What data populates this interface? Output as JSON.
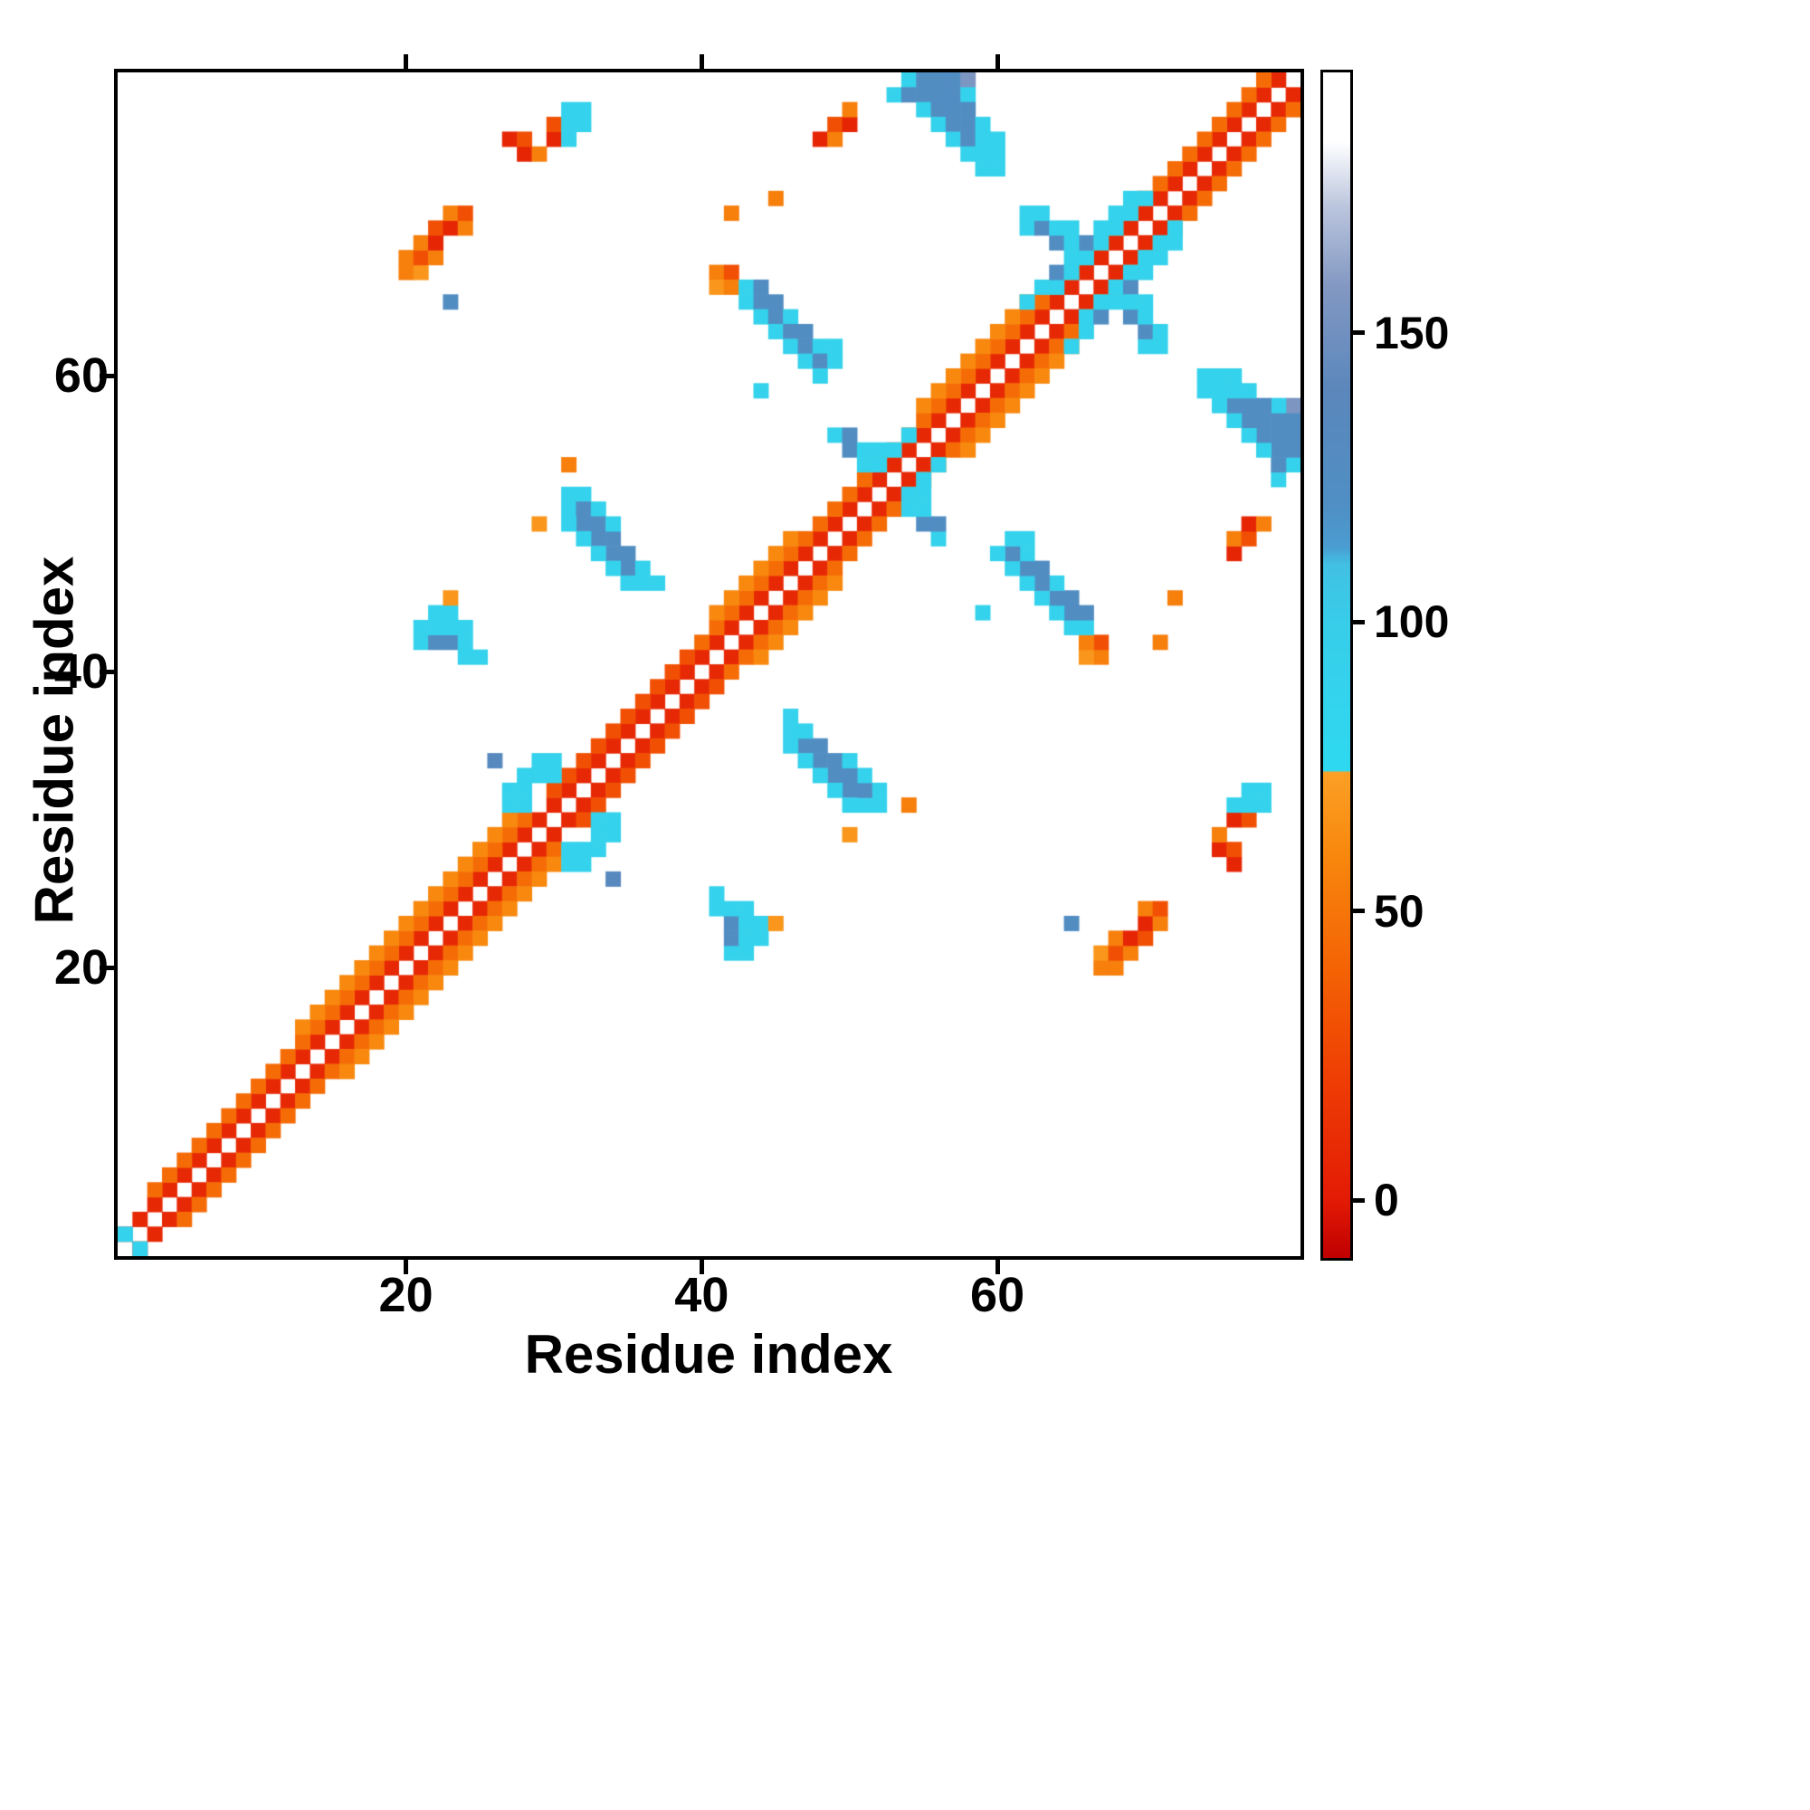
{
  "figure": {
    "background": "#ffffff"
  },
  "chart_data": {
    "type": "heatmap",
    "xlabel": "Residue index",
    "ylabel": "Residue index",
    "n_residues": 80,
    "x_ticks": [
      20,
      40,
      60
    ],
    "y_ticks": [
      20,
      40,
      60
    ],
    "symmetric": true,
    "grid": false,
    "colorbar": {
      "position": "right",
      "ticks": [
        0,
        50,
        100,
        150
      ],
      "vmin": -10,
      "vmax": 195,
      "stops": [
        [
          -10,
          "#c00000"
        ],
        [
          0,
          "#e31b05"
        ],
        [
          20,
          "#ee3c04"
        ],
        [
          40,
          "#f46304"
        ],
        [
          60,
          "#f8880e"
        ],
        [
          74,
          "#fba025"
        ],
        [
          74.2,
          "#2ed9f0"
        ],
        [
          100,
          "#38cdea"
        ],
        [
          110,
          "#41c0e4"
        ],
        [
          113,
          "#4a9dd2"
        ],
        [
          120,
          "#4f8fc4"
        ],
        [
          140,
          "#5b87bc"
        ],
        [
          158,
          "#8298c2"
        ],
        [
          172,
          "#bcc6de"
        ],
        [
          183,
          "#ffffff"
        ],
        [
          195,
          "#ffffff"
        ]
      ]
    },
    "diagonal_band": [
      {
        "from": 1,
        "to": 79,
        "offset": 1,
        "value": 8
      },
      {
        "from": 3,
        "to": 28,
        "offset": 2,
        "value": 45
      },
      {
        "from": 30,
        "to": 39,
        "offset": 2,
        "value": 30
      },
      {
        "from": 40,
        "to": 78,
        "offset": 2,
        "value": 45
      },
      {
        "from": 13,
        "to": 27,
        "offset": 3,
        "value": 60
      },
      {
        "from": 41,
        "to": 46,
        "offset": 3,
        "value": 60
      },
      {
        "from": 55,
        "to": 62,
        "offset": 3,
        "value": 60
      }
    ],
    "cells": [
      [
        1,
        2,
        90
      ],
      [
        20,
        67,
        55
      ],
      [
        21,
        67,
        68
      ],
      [
        20,
        68,
        55
      ],
      [
        21,
        68,
        30
      ],
      [
        22,
        68,
        55
      ],
      [
        21,
        69,
        55
      ],
      [
        22,
        69,
        6
      ],
      [
        22,
        70,
        30
      ],
      [
        23,
        70,
        6
      ],
      [
        23,
        71,
        55
      ],
      [
        24,
        70,
        55
      ],
      [
        24,
        71,
        30
      ],
      [
        27,
        76,
        6
      ],
      [
        28,
        75,
        6
      ],
      [
        28,
        76,
        30
      ],
      [
        29,
        75,
        55
      ],
      [
        30,
        76,
        6
      ],
      [
        30,
        77,
        30
      ],
      [
        31,
        76,
        90
      ],
      [
        31,
        77,
        90
      ],
      [
        31,
        78,
        90
      ],
      [
        32,
        77,
        90
      ],
      [
        32,
        78,
        90
      ],
      [
        48,
        76,
        6
      ],
      [
        49,
        76,
        55
      ],
      [
        49,
        77,
        30
      ],
      [
        50,
        77,
        6
      ],
      [
        50,
        78,
        55
      ],
      [
        54,
        80,
        90
      ],
      [
        55,
        80,
        125
      ],
      [
        56,
        80,
        125
      ],
      [
        57,
        80,
        125
      ],
      [
        58,
        80,
        155
      ],
      [
        53,
        79,
        90
      ],
      [
        54,
        79,
        125
      ],
      [
        55,
        79,
        125
      ],
      [
        56,
        79,
        125
      ],
      [
        57,
        79,
        125
      ],
      [
        58,
        79,
        90
      ],
      [
        55,
        78,
        90
      ],
      [
        56,
        78,
        125
      ],
      [
        57,
        78,
        125
      ],
      [
        58,
        78,
        125
      ],
      [
        56,
        77,
        90
      ],
      [
        57,
        77,
        125
      ],
      [
        58,
        77,
        125
      ],
      [
        59,
        77,
        90
      ],
      [
        57,
        76,
        90
      ],
      [
        58,
        76,
        125
      ],
      [
        59,
        76,
        90
      ],
      [
        60,
        76,
        90
      ],
      [
        58,
        75,
        90
      ],
      [
        59,
        75,
        90
      ],
      [
        60,
        75,
        90
      ],
      [
        59,
        74,
        90
      ],
      [
        60,
        74,
        90
      ],
      [
        42,
        71,
        55
      ],
      [
        45,
        72,
        55
      ],
      [
        41,
        67,
        55
      ],
      [
        41,
        66,
        68
      ],
      [
        42,
        67,
        30
      ],
      [
        42,
        66,
        55
      ],
      [
        43,
        66,
        90
      ],
      [
        44,
        66,
        125
      ],
      [
        43,
        65,
        90
      ],
      [
        44,
        65,
        125
      ],
      [
        45,
        65,
        125
      ],
      [
        44,
        64,
        90
      ],
      [
        45,
        64,
        125
      ],
      [
        46,
        64,
        90
      ],
      [
        45,
        63,
        90
      ],
      [
        46,
        63,
        125
      ],
      [
        47,
        63,
        125
      ],
      [
        46,
        62,
        90
      ],
      [
        47,
        62,
        125
      ],
      [
        48,
        62,
        90
      ],
      [
        47,
        61,
        90
      ],
      [
        48,
        61,
        125
      ],
      [
        49,
        61,
        90
      ],
      [
        48,
        60,
        90
      ],
      [
        49,
        62,
        90
      ],
      [
        44,
        59,
        90
      ],
      [
        62,
        65,
        90
      ],
      [
        63,
        66,
        90
      ],
      [
        64,
        66,
        90
      ],
      [
        64,
        67,
        125
      ],
      [
        65,
        67,
        90
      ],
      [
        65,
        68,
        90
      ],
      [
        66,
        68,
        90
      ],
      [
        66,
        69,
        125
      ],
      [
        67,
        69,
        90
      ],
      [
        67,
        70,
        90
      ],
      [
        68,
        70,
        90
      ],
      [
        68,
        71,
        90
      ],
      [
        69,
        71,
        90
      ],
      [
        69,
        72,
        90
      ],
      [
        70,
        72,
        90
      ],
      [
        62,
        70,
        90
      ],
      [
        62,
        71,
        90
      ],
      [
        63,
        70,
        125
      ],
      [
        63,
        71,
        90
      ],
      [
        64,
        69,
        125
      ],
      [
        64,
        70,
        90
      ],
      [
        65,
        69,
        90
      ],
      [
        65,
        70,
        90
      ],
      [
        23,
        65,
        125
      ],
      [
        49,
        56,
        90
      ],
      [
        50,
        56,
        125
      ],
      [
        50,
        55,
        125
      ],
      [
        51,
        55,
        90
      ],
      [
        51,
        54,
        90
      ],
      [
        52,
        54,
        90
      ],
      [
        52,
        55,
        90
      ],
      [
        53,
        55,
        90
      ],
      [
        54,
        56,
        90
      ],
      [
        29,
        50,
        68
      ],
      [
        31,
        54,
        55
      ],
      [
        31,
        51,
        90
      ],
      [
        31,
        52,
        90
      ],
      [
        32,
        52,
        90
      ],
      [
        32,
        51,
        125
      ],
      [
        32,
        50,
        125
      ],
      [
        33,
        51,
        90
      ],
      [
        33,
        50,
        125
      ],
      [
        33,
        49,
        125
      ],
      [
        34,
        49,
        125
      ],
      [
        34,
        48,
        125
      ],
      [
        35,
        48,
        125
      ],
      [
        35,
        47,
        125
      ],
      [
        36,
        47,
        90
      ],
      [
        36,
        46,
        90
      ],
      [
        37,
        46,
        90
      ],
      [
        31,
        50,
        90
      ],
      [
        32,
        49,
        90
      ],
      [
        33,
        48,
        90
      ],
      [
        34,
        47,
        90
      ],
      [
        35,
        46,
        90
      ],
      [
        34,
        50,
        90
      ],
      [
        21,
        42,
        90
      ],
      [
        21,
        43,
        90
      ],
      [
        22,
        42,
        125
      ],
      [
        22,
        43,
        90
      ],
      [
        22,
        44,
        90
      ],
      [
        23,
        42,
        125
      ],
      [
        23,
        43,
        90
      ],
      [
        24,
        41,
        90
      ],
      [
        24,
        42,
        90
      ],
      [
        25,
        41,
        90
      ],
      [
        23,
        44,
        90
      ],
      [
        24,
        43,
        90
      ],
      [
        26,
        34,
        135
      ],
      [
        27,
        31,
        90
      ],
      [
        27,
        32,
        90
      ],
      [
        28,
        32,
        90
      ],
      [
        28,
        33,
        90
      ],
      [
        29,
        33,
        90
      ],
      [
        29,
        34,
        90
      ],
      [
        30,
        33,
        90
      ],
      [
        30,
        34,
        90
      ],
      [
        28,
        31,
        90
      ],
      [
        23,
        45,
        68
      ]
    ]
  }
}
